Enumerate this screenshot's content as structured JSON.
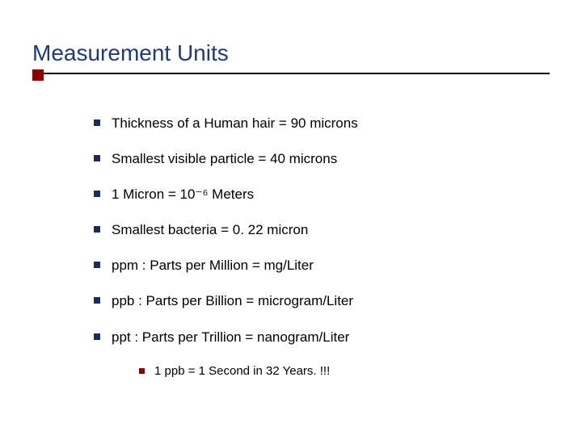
{
  "slide": {
    "title": "Measurement Units",
    "title_color": "#1f3a7a",
    "title_fontsize": 28,
    "underline_color": "#000000",
    "accent_color": "#8b0000",
    "bullet_marker_color": "#1f2a5a",
    "body_text_color": "#000000",
    "body_fontsize": 17,
    "sub_marker_color": "#8b0000",
    "sub_fontsize": 15,
    "background_color": "#ffffff",
    "bullets": [
      "Thickness of a Human hair = 90 microns",
      "Smallest visible particle = 40 microns",
      "1 Micron = 10⁻⁶ Meters",
      "Smallest bacteria = 0. 22 micron",
      "ppm : Parts per Million = mg/Liter",
      "ppb : Parts per Billion = microgram/Liter",
      "ppt : Parts per Trillion =  nanogram/Liter"
    ],
    "sub_bullets": [
      "1 ppb = 1 Second in 32 Years. !!!"
    ]
  }
}
